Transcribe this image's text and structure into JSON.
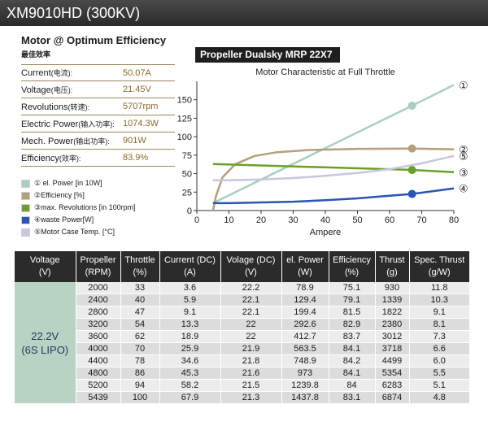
{
  "header": {
    "title": "XM9010HD (300KV)"
  },
  "specs": {
    "title": "Motor @ Optimum Efficiency",
    "subtitle": "最佳效率",
    "rows": [
      {
        "label": "Current",
        "label_cn": "(电流):",
        "value": "50.07A"
      },
      {
        "label": "Voltage",
        "label_cn": "(电压):",
        "value": "21.45V"
      },
      {
        "label": "Revolutions",
        "label_cn": "(转速):",
        "value": "5707rpm"
      },
      {
        "label": "Electric Power",
        "label_cn": "(输入功率):",
        "value": "1074.3W"
      },
      {
        "label": "Mech. Power",
        "label_cn": "(输出功率):",
        "value": "901W"
      },
      {
        "label": "Efficiency",
        "label_cn": "(效率):",
        "value": "83.9%"
      }
    ]
  },
  "legend": [
    {
      "text": "① el. Power [in 10W]",
      "color": "#a9cfc0"
    },
    {
      "text": "②Efficiency [%]",
      "color": "#b4a07a"
    },
    {
      "text": "③max. Revolutions [in 100rpm]",
      "color": "#6aa02a"
    },
    {
      "text": "④waste Power[W]",
      "color": "#2a55b0"
    },
    {
      "text": "⑤Motor Case Temp. [°C]",
      "color": "#c8c6e0"
    }
  ],
  "propeller": {
    "label": "Propeller Dualsky MRP 22X7"
  },
  "chart_data": {
    "type": "line",
    "title": "Motor Characteristic at Full Throttle",
    "xlabel": "Ampere",
    "ylabel": "",
    "xlim": [
      0,
      80
    ],
    "ylim": [
      0,
      175
    ],
    "x_ticks": [
      0,
      10,
      20,
      30,
      40,
      50,
      60,
      70,
      80
    ],
    "y_ticks": [
      0,
      25,
      50,
      75,
      100,
      125,
      150
    ],
    "series": [
      {
        "marker_label": "①",
        "color": "#a9cfc0",
        "x": [
          5,
          67,
          80
        ],
        "y": [
          10,
          142,
          170
        ],
        "marker_x": 67,
        "marker_y": 142
      },
      {
        "marker_label": "②",
        "color": "#b4a07a",
        "x": [
          5,
          6,
          8,
          12,
          18,
          25,
          35,
          50,
          67,
          80
        ],
        "y": [
          0,
          20,
          45,
          63,
          74,
          79,
          82,
          83.5,
          84,
          83
        ],
        "marker_x": 67,
        "marker_y": 84
      },
      {
        "marker_label": "③",
        "color": "#6aa02a",
        "x": [
          5,
          67,
          80
        ],
        "y": [
          63,
          55,
          52
        ],
        "marker_x": 67,
        "marker_y": 55
      },
      {
        "marker_label": "④",
        "color": "#2a55b0",
        "x": [
          5,
          10,
          20,
          30,
          40,
          50,
          60,
          67,
          80
        ],
        "y": [
          10,
          10,
          11,
          12,
          14,
          16.5,
          20,
          22.5,
          30
        ],
        "marker_x": 67,
        "marker_y": 22.5
      },
      {
        "marker_label": "⑤",
        "color": "#c8c6e0",
        "x": [
          5,
          10,
          20,
          30,
          40,
          50,
          60,
          70,
          80
        ],
        "y": [
          41,
          41,
          42,
          44,
          47,
          51,
          56,
          64,
          74
        ],
        "marker_x": null,
        "marker_y": null
      }
    ]
  },
  "table": {
    "headers": [
      [
        "Voltage",
        "(V)"
      ],
      [
        "Propeller",
        "(RPM)"
      ],
      [
        "Throttle",
        "(%)"
      ],
      [
        "Current (DC)",
        "(A)"
      ],
      [
        "Volage (DC)",
        "(V)"
      ],
      [
        "el. Power",
        "(W)"
      ],
      [
        "Efficiency",
        "(%)"
      ],
      [
        "Thrust",
        "(g)"
      ],
      [
        "Spec. Thrust",
        "(g/W)"
      ]
    ],
    "voltage_line1": "22.2V",
    "voltage_line2": "(6S LIPO)",
    "rows": [
      [
        "2000",
        "33",
        "3.6",
        "22.2",
        "78.9",
        "75.1",
        "930",
        "11.8"
      ],
      [
        "2400",
        "40",
        "5.9",
        "22.1",
        "129.4",
        "79.1",
        "1339",
        "10.3"
      ],
      [
        "2800",
        "47",
        "9.1",
        "22.1",
        "199.4",
        "81.5",
        "1822",
        "9.1"
      ],
      [
        "3200",
        "54",
        "13.3",
        "22",
        "292.6",
        "82.9",
        "2380",
        "8.1"
      ],
      [
        "3600",
        "62",
        "18.9",
        "22",
        "412.7",
        "83.7",
        "3012",
        "7.3"
      ],
      [
        "4000",
        "70",
        "25.9",
        "21.9",
        "563.5",
        "84.1",
        "3718",
        "6.6"
      ],
      [
        "4400",
        "78",
        "34.6",
        "21.8",
        "748.9",
        "84.2",
        "4499",
        "6.0"
      ],
      [
        "4800",
        "86",
        "45.3",
        "21.6",
        "973",
        "84.1",
        "5354",
        "5.5"
      ],
      [
        "5200",
        "94",
        "58.2",
        "21.5",
        "1239.8",
        "84",
        "6283",
        "5.1"
      ],
      [
        "5439",
        "100",
        "67.9",
        "21.3",
        "1437.8",
        "83.1",
        "6874",
        "4.8"
      ]
    ]
  }
}
